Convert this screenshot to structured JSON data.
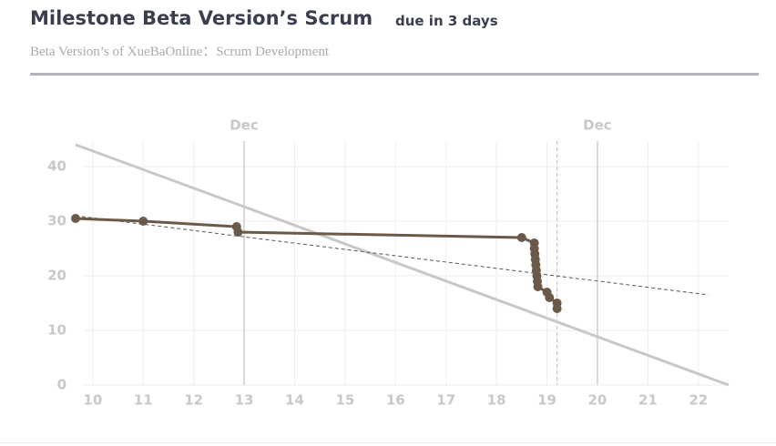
{
  "header": {
    "title": "Milestone Beta Version’s Scrum",
    "due": "due in 3 days",
    "subtitle": "Beta Version’s of XueBaOnline：Scrum Development"
  },
  "chart_data": {
    "type": "line",
    "xlim": [
      9.66,
      22.6
    ],
    "ylim": [
      0,
      44.5
    ],
    "xticks": [
      10,
      11,
      12,
      13,
      14,
      15,
      16,
      17,
      18,
      19,
      20,
      21,
      22
    ],
    "yticks": [
      0,
      10,
      20,
      30,
      40
    ],
    "top_ticks": [
      {
        "value": 13,
        "label": "Dec"
      },
      {
        "value": 20,
        "label": "Dec"
      }
    ],
    "today": 19.2,
    "grid": true,
    "series": [
      {
        "color": "#c8c8c8",
        "style": "solid",
        "markers": false,
        "x": [
          9.66,
          22.6
        ],
        "values": [
          44,
          0
        ]
      },
      {
        "color": "#555555",
        "style": "dashed",
        "markers": false,
        "x": [
          9.66,
          22.2
        ],
        "values": [
          31,
          16.5
        ]
      },
      {
        "color": "#6b5a4a",
        "style": "solid",
        "markers": true,
        "x": [
          9.66,
          11,
          12.85,
          12.88,
          18.5,
          18.75,
          18.75,
          18.76,
          18.77,
          18.78,
          18.79,
          18.8,
          18.81,
          18.82,
          19.0,
          19.05,
          19.2,
          19.2
        ],
        "values": [
          30.5,
          30,
          29,
          28,
          27,
          26,
          25,
          24,
          23,
          22,
          21,
          20,
          19,
          18,
          17,
          16,
          15,
          14
        ]
      }
    ]
  }
}
